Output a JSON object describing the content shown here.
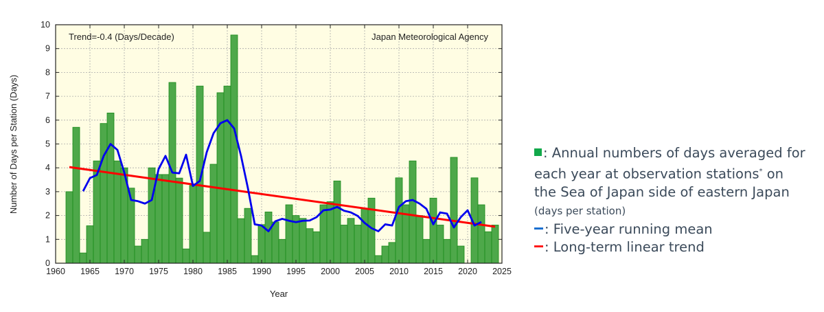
{
  "chart_data": {
    "type": "bar",
    "xlabel": "Year",
    "ylabel": "Number of Days per Station (Days)",
    "xlim": [
      1960,
      2025
    ],
    "ylim": [
      0,
      10
    ],
    "xticks": [
      1960,
      1965,
      1970,
      1975,
      1980,
      1985,
      1990,
      1995,
      2000,
      2005,
      2010,
      2015,
      2020,
      2025
    ],
    "yticks": [
      0,
      1,
      2,
      3,
      4,
      5,
      6,
      7,
      8,
      9,
      10
    ],
    "grid": true,
    "annotations": {
      "trend": "Trend=-0.4 (Days/Decade)",
      "source": "Japan Meteorological Agency"
    },
    "colors": {
      "bar": "#4ea84a",
      "bar_edge": "#1a8a1a",
      "running_mean": "#0000ee",
      "trend": "#ff0000",
      "plot_bg": "#fffde3"
    },
    "bars": {
      "x": [
        1962,
        1963,
        1964,
        1965,
        1966,
        1967,
        1968,
        1969,
        1970,
        1971,
        1972,
        1973,
        1974,
        1975,
        1976,
        1977,
        1978,
        1979,
        1980,
        1981,
        1982,
        1983,
        1984,
        1985,
        1986,
        1987,
        1988,
        1989,
        1990,
        1991,
        1992,
        1993,
        1994,
        1995,
        1996,
        1997,
        1998,
        1999,
        2000,
        2001,
        2002,
        2003,
        2004,
        2005,
        2006,
        2007,
        2008,
        2009,
        2010,
        2011,
        2012,
        2013,
        2014,
        2015,
        2016,
        2017,
        2018,
        2019,
        2020,
        2021,
        2022,
        2023,
        2024
      ],
      "values": [
        3.0,
        5.7,
        0.43,
        1.57,
        4.29,
        5.86,
        6.3,
        4.29,
        4.0,
        3.15,
        0.72,
        1.0,
        4.0,
        3.72,
        3.72,
        7.58,
        3.57,
        0.6,
        3.26,
        7.43,
        1.3,
        4.15,
        7.15,
        7.43,
        9.57,
        1.87,
        2.3,
        0.32,
        1.62,
        2.15,
        1.73,
        1.0,
        2.45,
        2.0,
        1.88,
        1.45,
        1.32,
        2.45,
        2.58,
        3.45,
        1.6,
        1.88,
        1.6,
        2.3,
        2.73,
        0.32,
        0.72,
        0.87,
        3.58,
        2.45,
        4.29,
        2.0,
        1.0,
        2.73,
        1.6,
        1.0,
        4.44,
        0.72,
        0.0,
        3.58,
        2.45,
        1.32,
        1.6
      ]
    },
    "running_mean": {
      "x": [
        1964,
        1965,
        1966,
        1967,
        1968,
        1969,
        1970,
        1971,
        1972,
        1973,
        1974,
        1975,
        1976,
        1977,
        1978,
        1979,
        1980,
        1981,
        1982,
        1983,
        1984,
        1985,
        1986,
        1987,
        1988,
        1989,
        1990,
        1991,
        1992,
        1993,
        1994,
        1995,
        1996,
        1997,
        1998,
        1999,
        2000,
        2001,
        2002,
        2003,
        2004,
        2005,
        2006,
        2007,
        2008,
        2009,
        2010,
        2011,
        2012,
        2013,
        2014,
        2015,
        2016,
        2017,
        2018,
        2019,
        2020,
        2021,
        2022
      ],
      "values": [
        3.02,
        3.57,
        3.7,
        4.5,
        5.0,
        4.75,
        3.8,
        2.65,
        2.6,
        2.5,
        2.65,
        3.95,
        4.5,
        3.8,
        3.77,
        4.55,
        3.24,
        3.45,
        4.65,
        5.45,
        5.87,
        6.0,
        5.65,
        4.5,
        3.15,
        1.63,
        1.58,
        1.34,
        1.76,
        1.86,
        1.78,
        1.72,
        1.78,
        1.79,
        1.93,
        2.22,
        2.25,
        2.36,
        2.2,
        2.13,
        1.98,
        1.69,
        1.47,
        1.34,
        1.63,
        1.58,
        2.36,
        2.6,
        2.65,
        2.5,
        2.28,
        1.63,
        2.13,
        2.08,
        1.5,
        1.93,
        2.22,
        1.58,
        1.73
      ]
    },
    "trend_line": {
      "x": [
        1962,
        2024
      ],
      "values": [
        4.03,
        1.53
      ]
    }
  },
  "legend": {
    "bars_text_1": ": Annual numbers of days averaged for each year at observation stations",
    "bars_sup": "*",
    "bars_text_2": " on the Sea of Japan side of eastern Japan ",
    "bars_unit": "(days per station)",
    "mean_text": ": Five-year running mean",
    "trend_text": ": Long-term linear trend",
    "colors": {
      "bars": "#11a84a",
      "mean": "#1a6fd0",
      "trend": "#ff1a1a"
    }
  }
}
